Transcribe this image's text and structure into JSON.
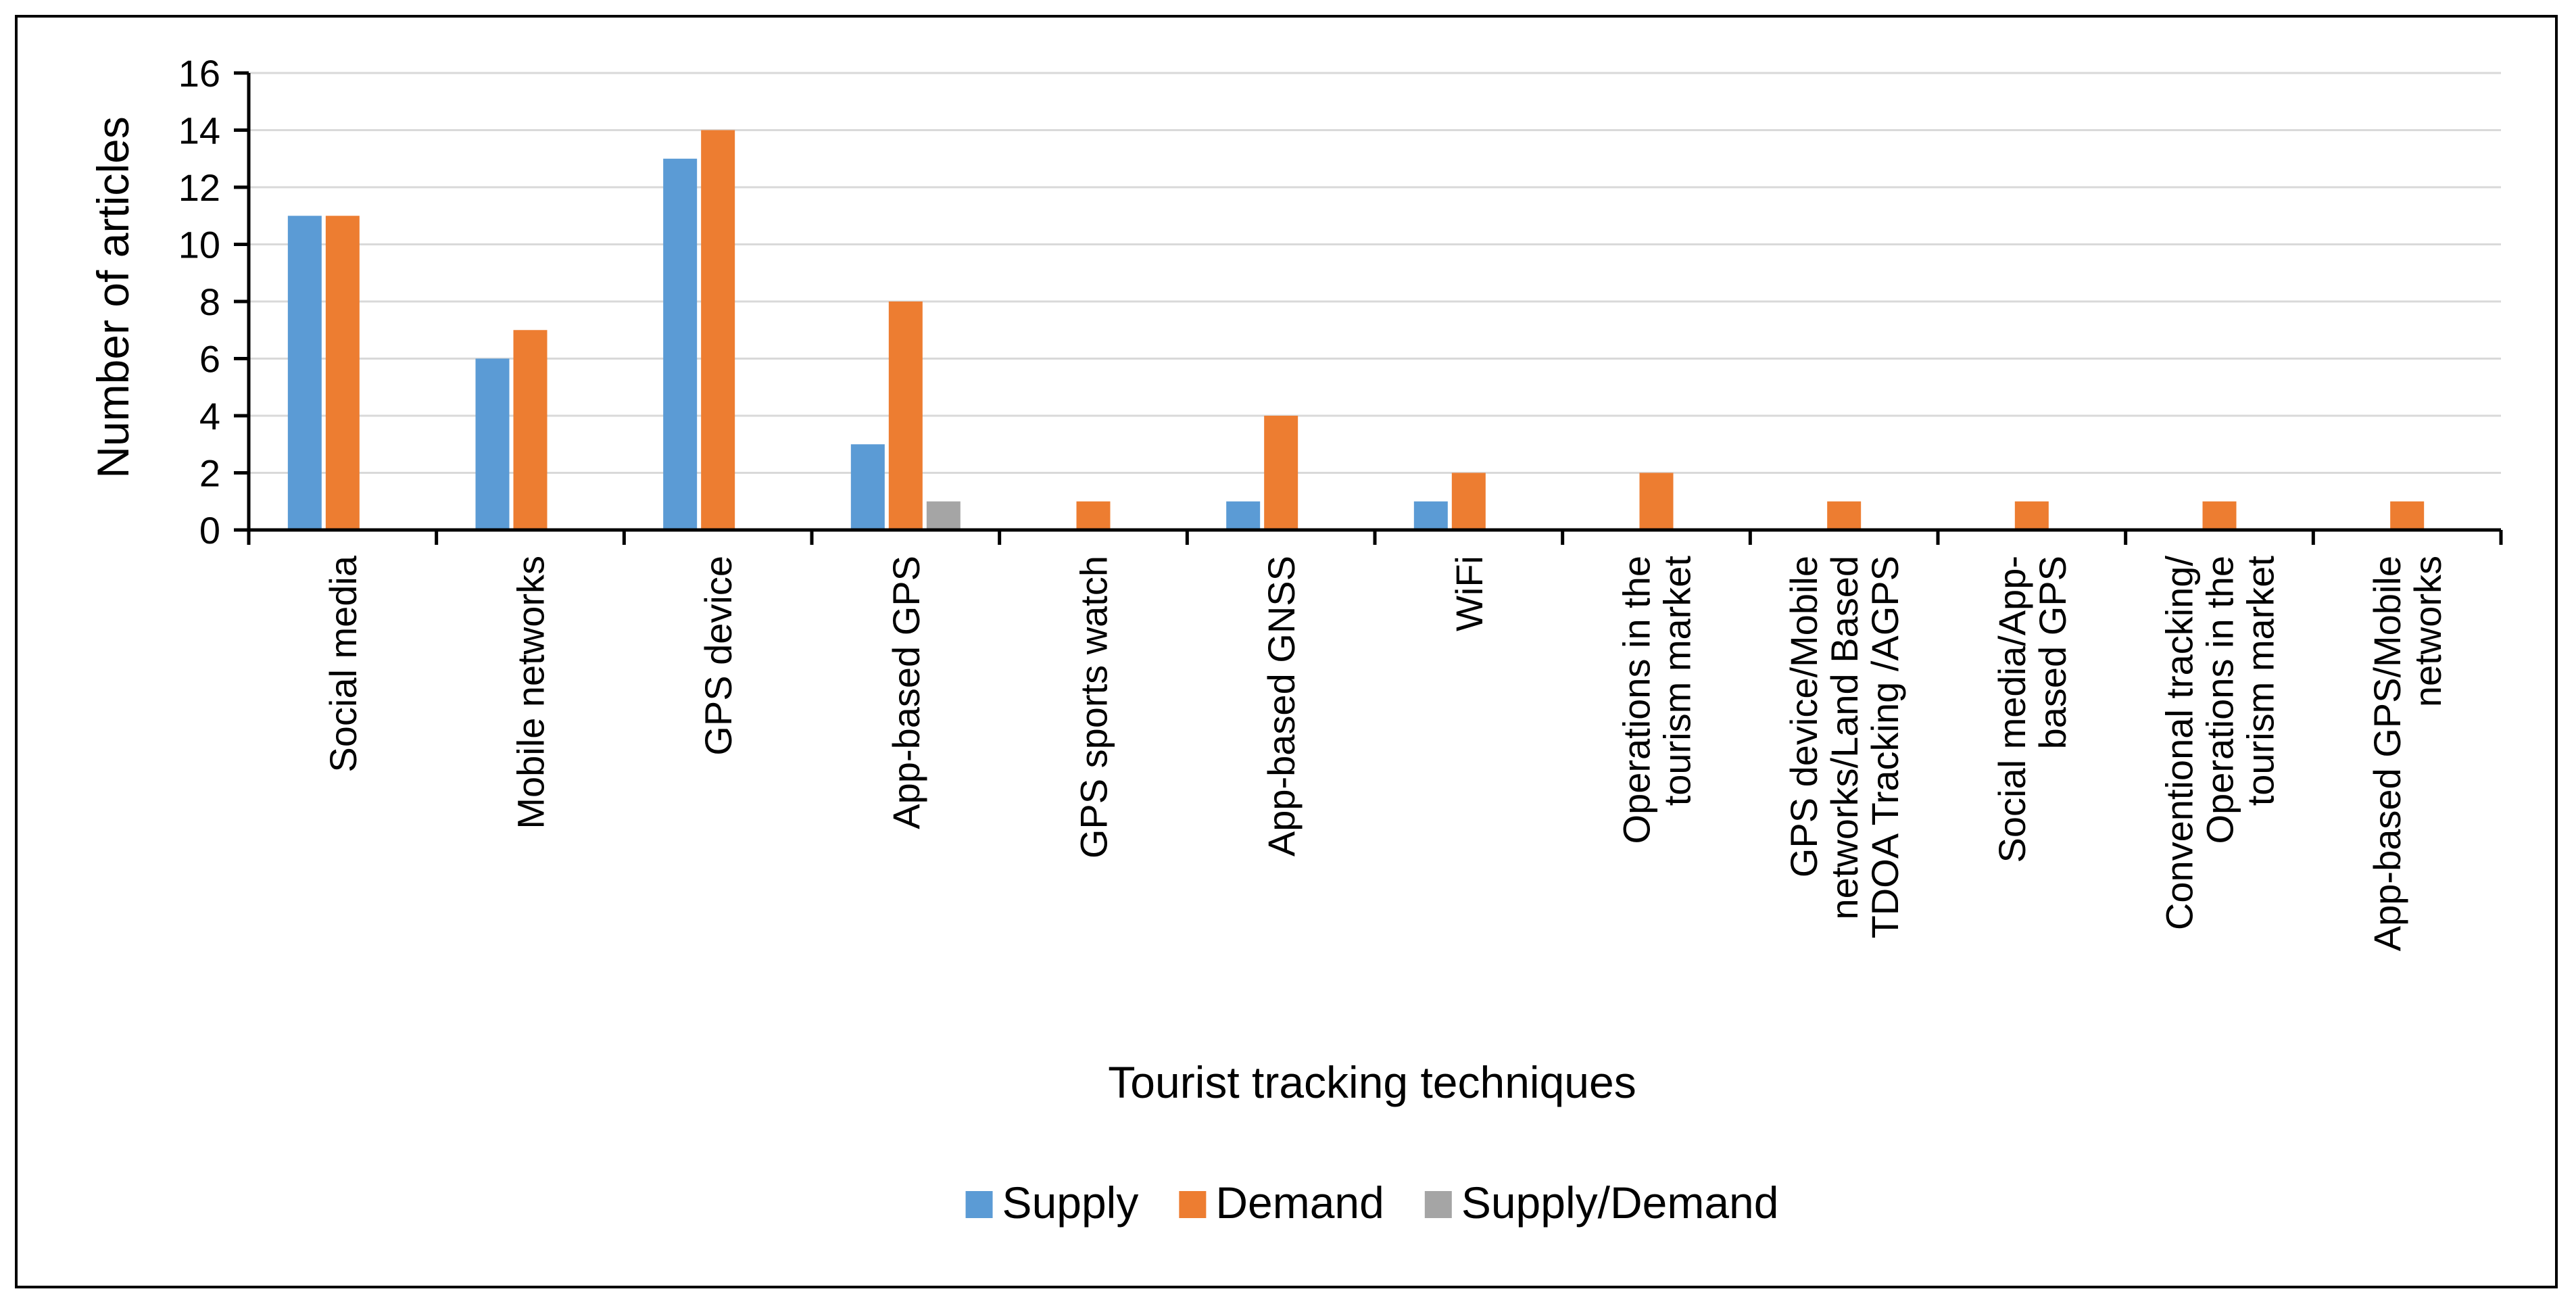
{
  "chart_data": {
    "type": "bar",
    "title": "",
    "xlabel": "Tourist tracking techniques",
    "ylabel": "Number of articles",
    "ylim": [
      0,
      16
    ],
    "yticks": [
      0,
      2,
      4,
      6,
      8,
      10,
      12,
      14,
      16
    ],
    "grid": true,
    "legend_position": "bottom",
    "categories": [
      [
        "Social media"
      ],
      [
        "Mobile networks"
      ],
      [
        "GPS device"
      ],
      [
        "App-based GPS"
      ],
      [
        "GPS sports watch"
      ],
      [
        "App-based GNSS"
      ],
      [
        "WiFi"
      ],
      [
        "Operations in the",
        "tourism market"
      ],
      [
        "GPS device/Mobile",
        "networks/Land Based",
        "TDOA Tracking /AGPS"
      ],
      [
        "Social media/App-",
        "based GPS"
      ],
      [
        "Conventional tracking/",
        "Operations in the",
        "tourism market"
      ],
      [
        "App-based GPS/Mobile",
        "networks"
      ]
    ],
    "series": [
      {
        "name": "Supply",
        "color": "#5B9BD5",
        "values": [
          11,
          6,
          13,
          3,
          0,
          1,
          1,
          0,
          0,
          0,
          0,
          0
        ]
      },
      {
        "name": "Demand",
        "color": "#ED7D31",
        "values": [
          11,
          7,
          14,
          8,
          1,
          4,
          2,
          2,
          1,
          1,
          1,
          1
        ]
      },
      {
        "name": "Supply/Demand",
        "color": "#A5A5A5",
        "values": [
          0,
          0,
          0,
          1,
          0,
          0,
          0,
          0,
          0,
          0,
          0,
          0
        ]
      }
    ]
  }
}
